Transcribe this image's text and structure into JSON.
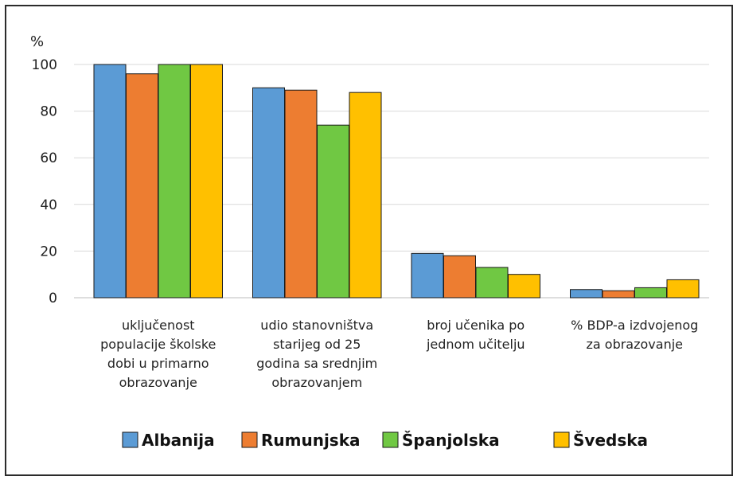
{
  "chart_data": {
    "type": "bar",
    "ylabel": "%",
    "ylim": [
      0,
      100
    ],
    "yticks": [
      0,
      20,
      40,
      60,
      80,
      100
    ],
    "grid": true,
    "legend_position": "bottom",
    "categories": [
      [
        "uključenost",
        "populacije školske",
        "dobi u primarno",
        "obrazovanje"
      ],
      [
        "udio stanovništva",
        "starijeg od 25",
        "godina sa srednjim",
        "obrazovanjem"
      ],
      [
        "broj učenika po",
        "jednom učitelju"
      ],
      [
        "% BDP-a izdvojenog",
        "za obrazovanje"
      ]
    ],
    "series": [
      {
        "name": "Albanija",
        "color": "#5b9bd5",
        "values": [
          100,
          90,
          19,
          3.5
        ]
      },
      {
        "name": "Rumunjska",
        "color": "#ed7d31",
        "values": [
          96,
          89,
          18,
          3
        ]
      },
      {
        "name": "Španjolska",
        "color": "#70c843",
        "values": [
          100,
          74,
          13,
          4.3
        ]
      },
      {
        "name": "Švedska",
        "color": "#ffc000",
        "values": [
          100,
          88,
          10,
          7.7
        ]
      }
    ]
  }
}
